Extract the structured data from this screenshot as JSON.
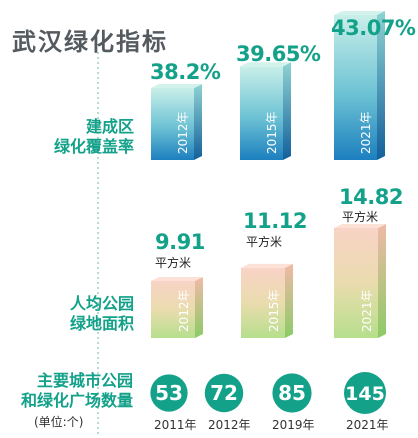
{
  "title": "武汉绿化指标",
  "sections": {
    "coverage_label": [
      "建成区",
      "绿化覆盖率"
    ],
    "green_area_label": [
      "人均公园",
      "绿地面积"
    ],
    "parks_label": [
      "主要城市公园",
      "和绿化广场数量"
    ],
    "parks_unit_note": "(单位:个)"
  },
  "area_unit": "平方米",
  "colors": {
    "accent": "#13a18a",
    "coverage_bar_top": "#b6e6e3",
    "coverage_bar_bottom": "#1e88c0",
    "green_bar_top": "#f6d2c5",
    "green_bar_bottom": "#b7df8f",
    "park_circle": "#13a18a"
  },
  "chart_data": [
    {
      "type": "bar",
      "title": "建成区绿化覆盖率",
      "categories": [
        "2012年",
        "2015年",
        "2021年"
      ],
      "values": [
        38.2,
        39.65,
        43.07
      ],
      "value_labels": [
        "38.2%",
        "39.65%",
        "43.07%"
      ]
    },
    {
      "type": "bar",
      "title": "人均公园绿地面积",
      "categories": [
        "2012年",
        "2015年",
        "2021年"
      ],
      "values": [
        9.91,
        11.12,
        14.82
      ],
      "value_labels": [
        "9.91",
        "11.12",
        "14.82"
      ]
    },
    {
      "type": "bar",
      "title": "主要城市公园和绿化广场数量",
      "categories": [
        "2011年",
        "2012年",
        "2019年",
        "2021年"
      ],
      "values": [
        53,
        72,
        85,
        145
      ],
      "value_labels": [
        "53",
        "72",
        "85",
        "145"
      ]
    }
  ]
}
